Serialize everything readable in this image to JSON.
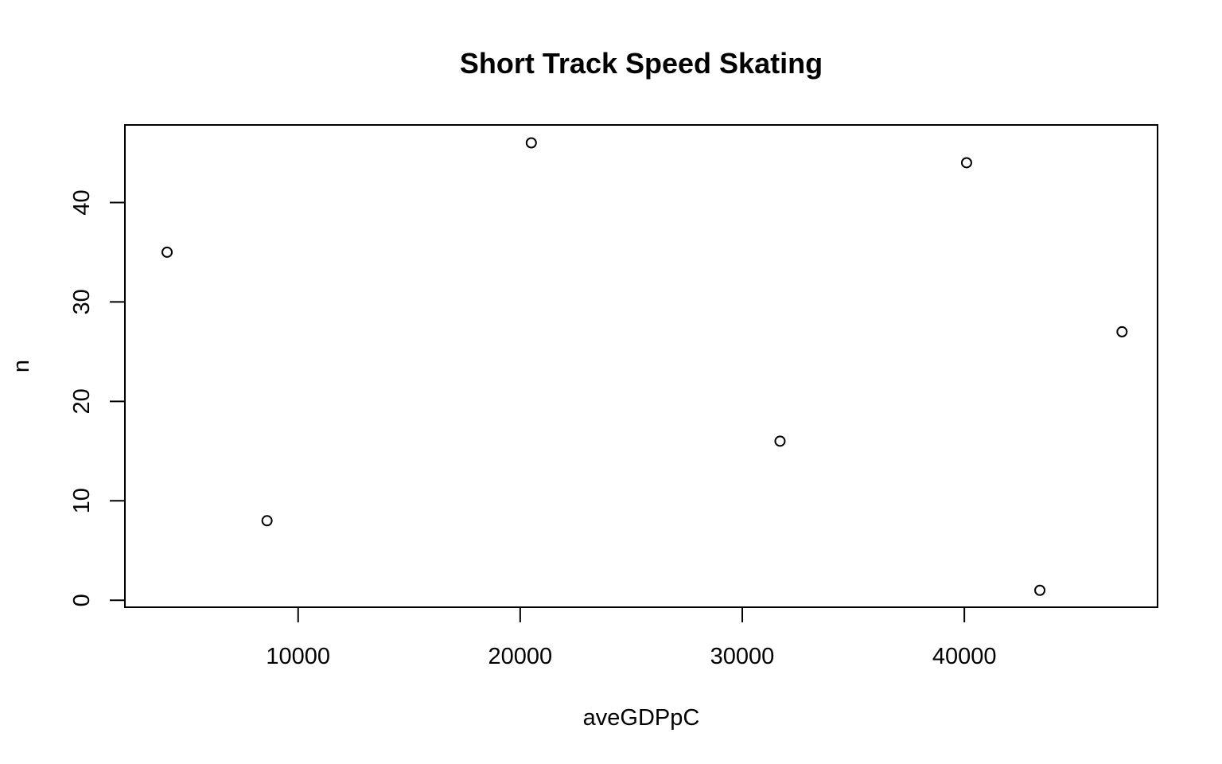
{
  "chart_data": {
    "type": "scatter",
    "title": "Short Track Speed Skating",
    "xlabel": "aveGDPpC",
    "ylabel": "n",
    "x_ticks": [
      10000,
      20000,
      30000,
      40000
    ],
    "y_ticks": [
      0,
      10,
      20,
      30,
      40
    ],
    "xlim": [
      2200,
      48700
    ],
    "ylim": [
      -0.7,
      47.8
    ],
    "grid": false,
    "points": [
      {
        "x": 4100,
        "y": 35
      },
      {
        "x": 8600,
        "y": 8
      },
      {
        "x": 20500,
        "y": 46
      },
      {
        "x": 31700,
        "y": 16
      },
      {
        "x": 40100,
        "y": 44
      },
      {
        "x": 43400,
        "y": 1
      },
      {
        "x": 47100,
        "y": 27
      }
    ]
  }
}
